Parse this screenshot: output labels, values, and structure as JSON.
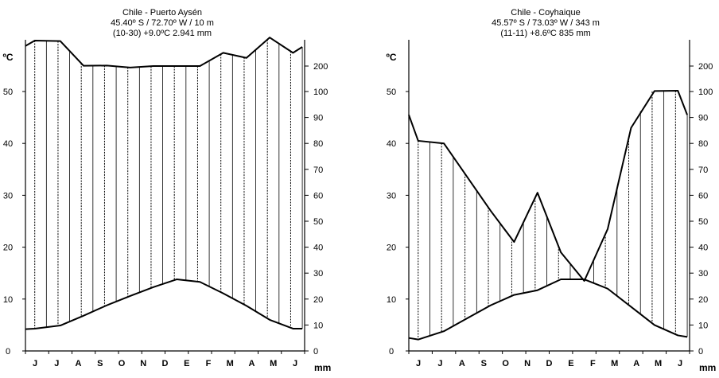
{
  "chart_data": [
    {
      "type": "line",
      "title_lines": [
        "Chile - Puerto Aysén",
        "45.40º S / 72.70º W / 10 m",
        "(10-30)  +9.0ºC  2.941 mm"
      ],
      "ylabel_left": "ºC",
      "ylabel_right": "mm",
      "categories": [
        "J",
        "J",
        "A",
        "S",
        "O",
        "N",
        "D",
        "E",
        "F",
        "M",
        "A",
        "M",
        "J"
      ],
      "temp_ticks": [
        "0",
        "10",
        "20",
        "30",
        "40",
        "50"
      ],
      "precip_ticks": [
        "0",
        "10",
        "20",
        "30",
        "40",
        "50",
        "60",
        "70",
        "80",
        "90",
        "100",
        "200"
      ],
      "series": [
        {
          "role": "temperature",
          "x": [
            0,
            0.4,
            1.5,
            2.5,
            3.5,
            4.5,
            5.5,
            6.5,
            7.5,
            8.5,
            9.5,
            10.5,
            11.5,
            11.9
          ],
          "values": [
            4.2,
            4.3,
            4.9,
            6.8,
            8.8,
            10.6,
            12.3,
            13.8,
            13.3,
            11.1,
            8.7,
            6.0,
            4.3,
            4.3
          ]
        },
        {
          "role": "precipitation",
          "x": [
            0,
            0.4,
            1.5,
            2.5,
            3.5,
            4.5,
            5.5,
            6.5,
            7.5,
            8.5,
            9.5,
            10.5,
            11.5,
            11.9
          ],
          "values": [
            279,
            300,
            298,
            201,
            202,
            194,
            200,
            200,
            200,
            252,
            232,
            312,
            252,
            275
          ]
        }
      ]
    },
    {
      "type": "line",
      "title_lines": [
        "Chile - Coyhaique",
        "45.57º S / 73.03º W / 343 m",
        "(11-11)  +8.6ºC  835 mm"
      ],
      "ylabel_left": "ºC",
      "ylabel_right": "mm",
      "categories": [
        "J",
        "J",
        "A",
        "S",
        "O",
        "N",
        "D",
        "E",
        "F",
        "M",
        "A",
        "M",
        "J"
      ],
      "temp_ticks": [
        "0",
        "10",
        "20",
        "30",
        "40",
        "50"
      ],
      "precip_ticks": [
        "0",
        "10",
        "20",
        "30",
        "40",
        "50",
        "60",
        "70",
        "80",
        "90",
        "100",
        "200"
      ],
      "series": [
        {
          "role": "temperature",
          "x": [
            0,
            0.4,
            1.5,
            2.5,
            3.5,
            4.5,
            5.5,
            6.5,
            7.5,
            8.5,
            9.5,
            10.5,
            11.5,
            11.9
          ],
          "values": [
            2.5,
            2.2,
            3.8,
            6.3,
            8.8,
            10.8,
            11.7,
            13.8,
            13.8,
            12.0,
            8.5,
            5.0,
            3.0,
            2.7
          ]
        },
        {
          "role": "precipitation",
          "x": [
            0,
            0.4,
            1.5,
            2.5,
            3.5,
            4.5,
            5.5,
            6.5,
            7.5,
            8.5,
            9.5,
            10.5,
            11.5,
            11.9
          ],
          "values": [
            91,
            81,
            80,
            67,
            54,
            42,
            61,
            38,
            27,
            47,
            86,
            102,
            103,
            91
          ]
        }
      ]
    }
  ]
}
